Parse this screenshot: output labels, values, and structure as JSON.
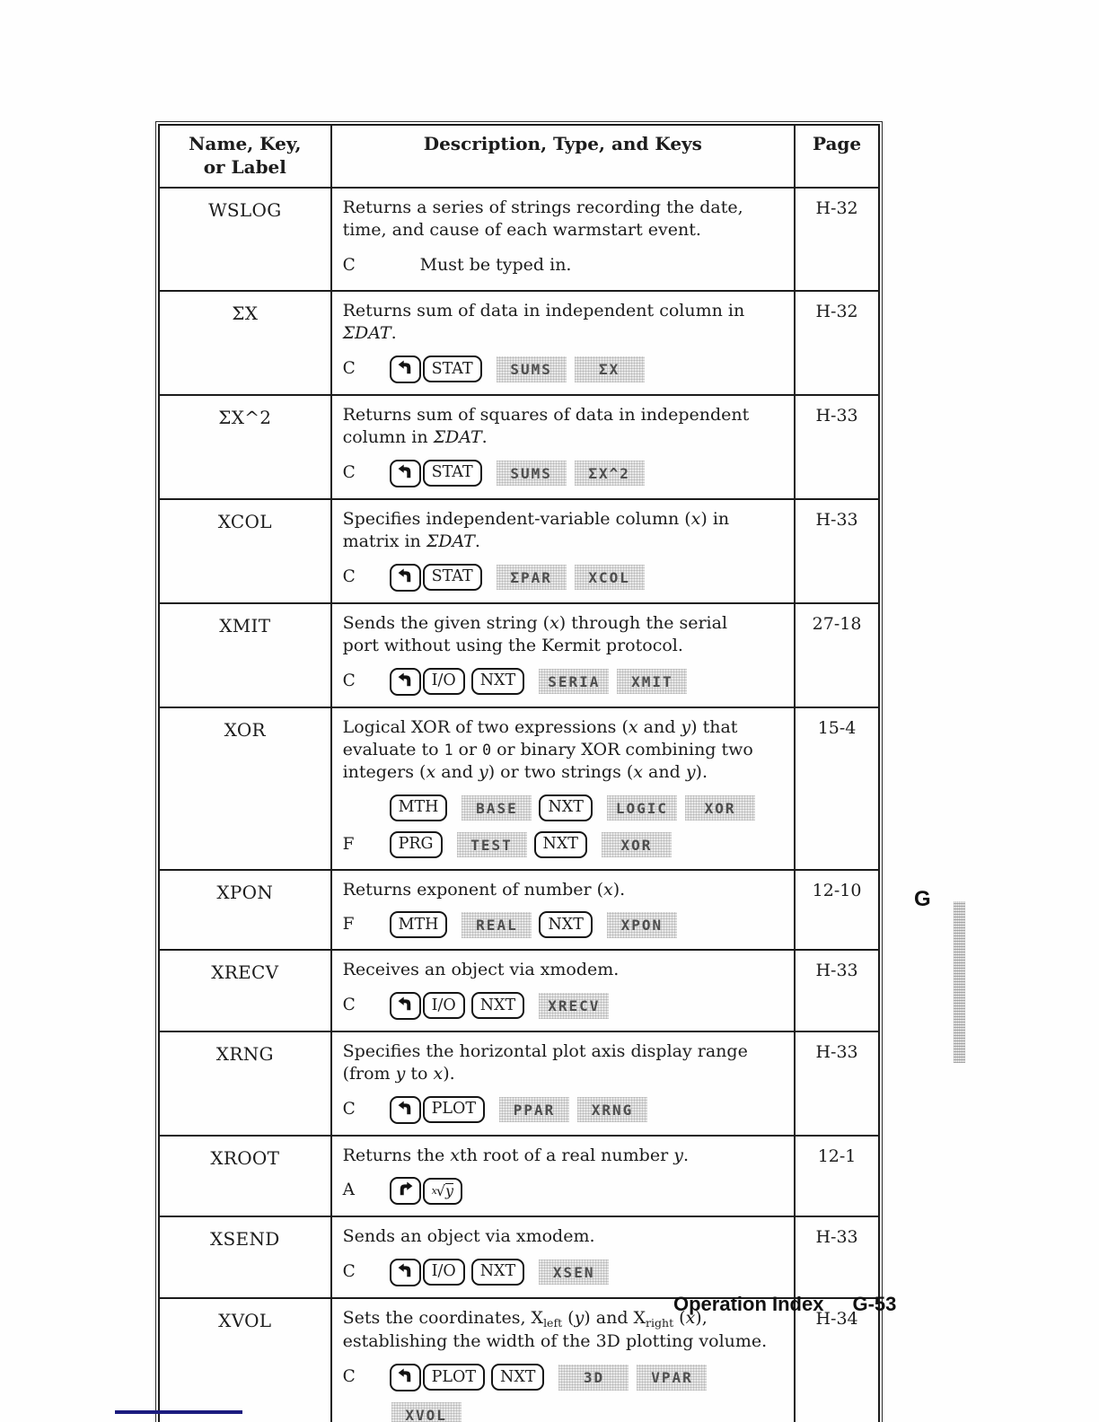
{
  "header": {
    "col1_line1": "Name, Key,",
    "col1_line2": "or Label",
    "col2": "Description, Type, and Keys",
    "col3": "Page"
  },
  "rows": [
    {
      "name": "WSLOG",
      "page": "H-32",
      "desc": [
        {
          "t": "Returns a series of strings recording the date, time, and cause of each warmstart event."
        }
      ],
      "cmds": [
        {
          "type": "C",
          "tokens": [
            {
              "k": "plain",
              "l": "Must be typed in."
            }
          ]
        }
      ]
    },
    {
      "name": "ΣX",
      "page": "H-32",
      "desc": [
        {
          "t": "Returns sum of data in independent column in "
        },
        {
          "t": "ΣDAT",
          "s": "i"
        },
        {
          "t": "."
        }
      ],
      "cmds": [
        {
          "type": "C",
          "tokens": [
            {
              "k": "lshift"
            },
            {
              "k": "key",
              "l": "STAT"
            },
            {
              "k": "menu",
              "l": "SUMS"
            },
            {
              "k": "menu",
              "l": "ΣX"
            }
          ]
        }
      ]
    },
    {
      "name": "ΣX^2",
      "page": "H-33",
      "desc": [
        {
          "t": "Returns sum of squares of data in independent column in "
        },
        {
          "t": "ΣDAT",
          "s": "i"
        },
        {
          "t": "."
        }
      ],
      "cmds": [
        {
          "type": "C",
          "tokens": [
            {
              "k": "lshift"
            },
            {
              "k": "key",
              "l": "STAT"
            },
            {
              "k": "menu",
              "l": "SUMS"
            },
            {
              "k": "menu",
              "l": "ΣX^2"
            }
          ]
        }
      ]
    },
    {
      "name": "XCOL",
      "page": "H-33",
      "desc": [
        {
          "t": "Specifies independent-variable column ("
        },
        {
          "t": "x",
          "s": "i"
        },
        {
          "t": ") in matrix in "
        },
        {
          "t": "ΣDAT",
          "s": "i"
        },
        {
          "t": "."
        }
      ],
      "cmds": [
        {
          "type": "C",
          "tokens": [
            {
              "k": "lshift"
            },
            {
              "k": "key",
              "l": "STAT"
            },
            {
              "k": "menu",
              "l": "ΣPAR"
            },
            {
              "k": "menu",
              "l": "XCOL"
            }
          ]
        }
      ]
    },
    {
      "name": "XMIT",
      "page": "27-18",
      "desc": [
        {
          "t": "Sends the given string ("
        },
        {
          "t": "x",
          "s": "i"
        },
        {
          "t": ") through the serial port without using the Kermit protocol."
        }
      ],
      "cmds": [
        {
          "type": "C",
          "tokens": [
            {
              "k": "lshift"
            },
            {
              "k": "key",
              "l": "I/O"
            },
            {
              "k": "key",
              "l": "NXT"
            },
            {
              "k": "menu",
              "l": "SERIA"
            },
            {
              "k": "menu",
              "l": "XMIT"
            }
          ]
        }
      ]
    },
    {
      "name": "XOR",
      "page": "15-4",
      "desc": [
        {
          "t": "Logical XOR of two expressions ("
        },
        {
          "t": "x",
          "s": "i"
        },
        {
          "t": " and "
        },
        {
          "t": "y",
          "s": "i"
        },
        {
          "t": ") that evaluate to "
        },
        {
          "t": "1",
          "s": "tt"
        },
        {
          "t": " or "
        },
        {
          "t": "0",
          "s": "tt"
        },
        {
          "t": " or binary XOR combining two integers ("
        },
        {
          "t": "x",
          "s": "i"
        },
        {
          "t": " and "
        },
        {
          "t": "y",
          "s": "i"
        },
        {
          "t": ") or two strings ("
        },
        {
          "t": "x",
          "s": "i"
        },
        {
          "t": " and "
        },
        {
          "t": "y",
          "s": "i"
        },
        {
          "t": ")."
        }
      ],
      "cmds": [
        {
          "type": "",
          "tokens": [
            {
              "k": "key",
              "l": "MTH"
            },
            {
              "k": "menu",
              "l": "BASE"
            },
            {
              "k": "key",
              "l": "NXT",
              "ml": true
            },
            {
              "k": "menu",
              "l": "LOGIC"
            },
            {
              "k": "menu",
              "l": "XOR"
            }
          ]
        },
        {
          "type": "F",
          "tokens": [
            {
              "k": "key",
              "l": "PRG"
            },
            {
              "k": "menu",
              "l": "TEST"
            },
            {
              "k": "key",
              "l": "NXT",
              "ml": true
            },
            {
              "k": "menu",
              "l": "XOR"
            }
          ]
        }
      ]
    },
    {
      "name": "XPON",
      "page": "12-10",
      "desc": [
        {
          "t": "Returns exponent of number ("
        },
        {
          "t": "x",
          "s": "i"
        },
        {
          "t": ")."
        }
      ],
      "cmds": [
        {
          "type": "F",
          "tokens": [
            {
              "k": "key",
              "l": "MTH"
            },
            {
              "k": "menu",
              "l": "REAL"
            },
            {
              "k": "key",
              "l": "NXT",
              "ml": true
            },
            {
              "k": "menu",
              "l": "XPON"
            }
          ]
        }
      ]
    },
    {
      "name": "XRECV",
      "page": "H-33",
      "desc": [
        {
          "t": "Receives an object via xmodem."
        }
      ],
      "cmds": [
        {
          "type": "C",
          "tokens": [
            {
              "k": "lshift"
            },
            {
              "k": "key",
              "l": "I/O"
            },
            {
              "k": "key",
              "l": "NXT"
            },
            {
              "k": "menu",
              "l": "XRECV"
            }
          ]
        }
      ]
    },
    {
      "name": "XRNG",
      "page": "H-33",
      "desc": [
        {
          "t": "Specifies the horizontal plot axis display range (from "
        },
        {
          "t": "y",
          "s": "i"
        },
        {
          "t": " to "
        },
        {
          "t": "x",
          "s": "i"
        },
        {
          "t": ")."
        }
      ],
      "cmds": [
        {
          "type": "C",
          "tokens": [
            {
              "k": "lshift"
            },
            {
              "k": "key",
              "l": "PLOT"
            },
            {
              "k": "menu",
              "l": "PPAR"
            },
            {
              "k": "menu",
              "l": "XRNG"
            }
          ]
        }
      ]
    },
    {
      "name": "XROOT",
      "page": "12-1",
      "desc": [
        {
          "t": "Returns the "
        },
        {
          "t": "x",
          "s": "i"
        },
        {
          "t": "th root of a real number "
        },
        {
          "t": "y",
          "s": "i"
        },
        {
          "t": "."
        }
      ],
      "cmds": [
        {
          "type": "A",
          "tokens": [
            {
              "k": "rshift"
            },
            {
              "k": "rootkey"
            }
          ]
        }
      ]
    },
    {
      "name": "XSEND",
      "page": "H-33",
      "desc": [
        {
          "t": "Sends an object via xmodem."
        }
      ],
      "cmds": [
        {
          "type": "C",
          "tokens": [
            {
              "k": "lshift"
            },
            {
              "k": "key",
              "l": "I/O"
            },
            {
              "k": "key",
              "l": "NXT"
            },
            {
              "k": "menu",
              "l": "XSEN"
            }
          ]
        }
      ]
    },
    {
      "name": "XVOL",
      "page": "H-34",
      "desc": [
        {
          "t": "Sets the coordinates, X"
        },
        {
          "t": "left",
          "s": "sub"
        },
        {
          "t": " ("
        },
        {
          "t": "y",
          "s": "i"
        },
        {
          "t": ") and X"
        },
        {
          "t": "right",
          "s": "sub"
        },
        {
          "t": " ("
        },
        {
          "t": "x",
          "s": "i"
        },
        {
          "t": "), establishing the width of the 3D plotting volume."
        }
      ],
      "cmds": [
        {
          "type": "C",
          "tokens": [
            {
              "k": "lshift"
            },
            {
              "k": "key",
              "l": "PLOT"
            },
            {
              "k": "key",
              "l": "NXT"
            },
            {
              "k": "menu",
              "l": "3D"
            },
            {
              "k": "menu",
              "l": "VPAR"
            }
          ]
        },
        {
          "type": "",
          "tokens": [
            {
              "k": "menu",
              "l": "XVOL",
              "noml": true
            }
          ]
        }
      ]
    }
  ],
  "rootkey": {
    "sup": "x",
    "radical": "√",
    "base": "y"
  },
  "footer": {
    "label": "Operation Index",
    "page": "G-53"
  },
  "tab": {
    "letter": "G"
  },
  "colors": {
    "ink": "#1c1c1c",
    "menu_bg": "#e9e9e9",
    "navy_rule": "#1b1b7e"
  }
}
